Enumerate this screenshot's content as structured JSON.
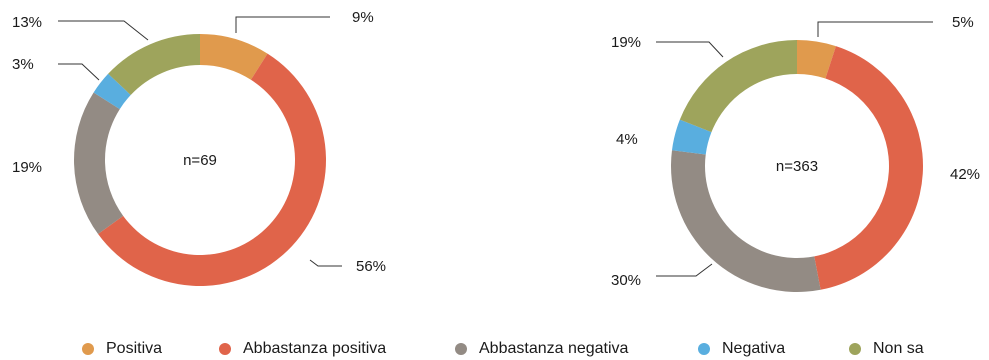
{
  "chart_data": [
    {
      "type": "donut",
      "center_label": "n=69",
      "categories": [
        "Positiva",
        "Abbastanza positiva",
        "Abbastanza negativa",
        "Negativa",
        "Non sa"
      ],
      "values": [
        9,
        56,
        19,
        3,
        13
      ],
      "labels": [
        "9%",
        "56%",
        "19%",
        "3%",
        "13%"
      ]
    },
    {
      "type": "donut",
      "center_label": "n=363",
      "categories": [
        "Positiva",
        "Abbastanza positiva",
        "Abbastanza negativa",
        "Negativa",
        "Non sa"
      ],
      "values": [
        5,
        42,
        30,
        4,
        19
      ],
      "labels": [
        "5%",
        "42%",
        "30%",
        "4%",
        "19%"
      ]
    }
  ],
  "legend": {
    "placement": "bottom",
    "items": [
      {
        "label": "Positiva",
        "color": "#e09a4d"
      },
      {
        "label": "Abbastanza positiva",
        "color": "#e0644a"
      },
      {
        "label": "Abbastanza negativa",
        "color": "#938b84"
      },
      {
        "label": "Negativa",
        "color": "#59aedf"
      },
      {
        "label": "Non sa",
        "color": "#9ea45c"
      }
    ]
  }
}
